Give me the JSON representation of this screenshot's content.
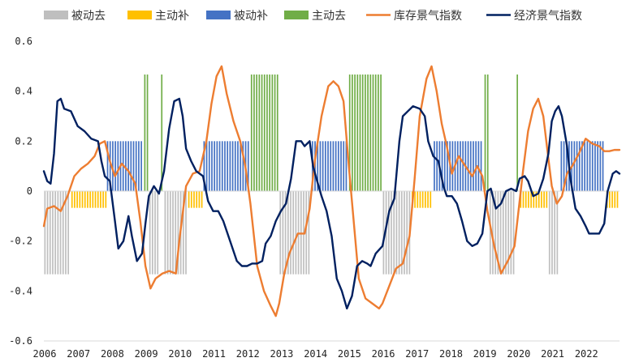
{
  "chart_data": {
    "type": "line",
    "title": "",
    "xlabel": "",
    "ylabel": "",
    "ylim": [
      -0.6,
      0.6
    ],
    "yticks": [
      "0.6",
      "0.4",
      "0.2",
      "0",
      "-0.2",
      "-0.4",
      "-0.6"
    ],
    "ytick_values": [
      0.6,
      0.4,
      0.2,
      0,
      -0.2,
      -0.4,
      -0.6
    ],
    "xlim": [
      2006.0,
      2023.0
    ],
    "xticks": [
      "2006",
      "2007",
      "2008",
      "2009",
      "2010",
      "2011",
      "2012",
      "2013",
      "2014",
      "2015",
      "2016",
      "2017",
      "2018",
      "2019",
      "2020",
      "2021",
      "2022"
    ],
    "legend": {
      "position": "top",
      "items": [
        {
          "label": "被动去",
          "kind": "bar",
          "color": "#bfbfbf"
        },
        {
          "label": "主动补",
          "kind": "bar",
          "color": "#ffc000"
        },
        {
          "label": "被动补",
          "kind": "bar",
          "color": "#4472c4"
        },
        {
          "label": "主动去",
          "kind": "bar",
          "color": "#70ad47"
        },
        {
          "label": "库存景气指数",
          "kind": "line",
          "color": "#ed7d31"
        },
        {
          "label": "经济景气指数",
          "kind": "line",
          "color": "#002060"
        }
      ]
    },
    "regimes": [
      {
        "start": 2006.0,
        "end": 2006.8,
        "phase": "被动去",
        "value": -0.333
      },
      {
        "start": 2006.8,
        "end": 2007.85,
        "phase": "主动补",
        "value": -0.067
      },
      {
        "start": 2007.85,
        "end": 2008.95,
        "phase": "被动补",
        "value": 0.2
      },
      {
        "start": 2008.95,
        "end": 2009.1,
        "phase": "主动去",
        "value": 0.467
      },
      {
        "start": 2009.1,
        "end": 2009.45,
        "phase": "被动去",
        "value": -0.333
      },
      {
        "start": 2009.45,
        "end": 2009.55,
        "phase": "主动去",
        "value": 0.467
      },
      {
        "start": 2009.55,
        "end": 2010.25,
        "phase": "被动去",
        "value": -0.333
      },
      {
        "start": 2010.25,
        "end": 2010.7,
        "phase": "主动补",
        "value": -0.067
      },
      {
        "start": 2010.7,
        "end": 2012.1,
        "phase": "被动补",
        "value": 0.2
      },
      {
        "start": 2012.1,
        "end": 2012.95,
        "phase": "主动去",
        "value": 0.467
      },
      {
        "start": 2012.95,
        "end": 2013.9,
        "phase": "被动去",
        "value": -0.333
      },
      {
        "start": 2013.9,
        "end": 2015.0,
        "phase": "被动补",
        "value": 0.2
      },
      {
        "start": 2015.0,
        "end": 2016.0,
        "phase": "主动去",
        "value": 0.467
      },
      {
        "start": 2016.0,
        "end": 2016.85,
        "phase": "被动去",
        "value": -0.333
      },
      {
        "start": 2016.85,
        "end": 2017.5,
        "phase": "主动补",
        "value": -0.067
      },
      {
        "start": 2017.5,
        "end": 2019.0,
        "phase": "被动补",
        "value": 0.2
      },
      {
        "start": 2019.0,
        "end": 2019.15,
        "phase": "主动去",
        "value": 0.467
      },
      {
        "start": 2019.15,
        "end": 2019.95,
        "phase": "被动去",
        "value": -0.333
      },
      {
        "start": 2019.95,
        "end": 2020.05,
        "phase": "主动去",
        "value": 0.467
      },
      {
        "start": 2020.05,
        "end": 2020.9,
        "phase": "主动补",
        "value": -0.067
      },
      {
        "start": 2020.9,
        "end": 2021.25,
        "phase": "被动去",
        "value": -0.333
      },
      {
        "start": 2021.25,
        "end": 2022.6,
        "phase": "被动补",
        "value": 0.2
      },
      {
        "start": 2022.6,
        "end": 2023.0,
        "phase": "主动补",
        "value": -0.067
      }
    ],
    "series": [
      {
        "name": "库存景气指数",
        "color": "#ed7d31",
        "points": [
          [
            2006.0,
            -0.14
          ],
          [
            2006.1,
            -0.07
          ],
          [
            2006.3,
            -0.06
          ],
          [
            2006.5,
            -0.08
          ],
          [
            2006.7,
            -0.02
          ],
          [
            2006.9,
            0.06
          ],
          [
            2007.1,
            0.09
          ],
          [
            2007.3,
            0.11
          ],
          [
            2007.5,
            0.14
          ],
          [
            2007.65,
            0.19
          ],
          [
            2007.8,
            0.2
          ],
          [
            2007.95,
            0.12
          ],
          [
            2008.1,
            0.06
          ],
          [
            2008.3,
            0.11
          ],
          [
            2008.5,
            0.08
          ],
          [
            2008.7,
            0.03
          ],
          [
            2008.85,
            -0.12
          ],
          [
            2009.0,
            -0.3
          ],
          [
            2009.15,
            -0.39
          ],
          [
            2009.3,
            -0.35
          ],
          [
            2009.5,
            -0.33
          ],
          [
            2009.7,
            -0.32
          ],
          [
            2009.9,
            -0.33
          ],
          [
            2010.0,
            -0.2
          ],
          [
            2010.2,
            0.02
          ],
          [
            2010.4,
            0.07
          ],
          [
            2010.6,
            0.08
          ],
          [
            2010.8,
            0.2
          ],
          [
            2010.95,
            0.35
          ],
          [
            2011.1,
            0.46
          ],
          [
            2011.25,
            0.5
          ],
          [
            2011.4,
            0.39
          ],
          [
            2011.6,
            0.28
          ],
          [
            2011.8,
            0.2
          ],
          [
            2011.95,
            0.1
          ],
          [
            2012.1,
            -0.05
          ],
          [
            2012.3,
            -0.3
          ],
          [
            2012.5,
            -0.4
          ],
          [
            2012.7,
            -0.46
          ],
          [
            2012.85,
            -0.5
          ],
          [
            2012.95,
            -0.45
          ],
          [
            2013.1,
            -0.33
          ],
          [
            2013.25,
            -0.25
          ],
          [
            2013.5,
            -0.17
          ],
          [
            2013.7,
            -0.17
          ],
          [
            2013.85,
            -0.07
          ],
          [
            2014.0,
            0.12
          ],
          [
            2014.2,
            0.3
          ],
          [
            2014.4,
            0.42
          ],
          [
            2014.55,
            0.44
          ],
          [
            2014.7,
            0.42
          ],
          [
            2014.85,
            0.36
          ],
          [
            2015.0,
            0.11
          ],
          [
            2015.15,
            -0.12
          ],
          [
            2015.3,
            -0.35
          ],
          [
            2015.5,
            -0.43
          ],
          [
            2015.7,
            -0.45
          ],
          [
            2015.9,
            -0.47
          ],
          [
            2016.0,
            -0.45
          ],
          [
            2016.2,
            -0.38
          ],
          [
            2016.4,
            -0.31
          ],
          [
            2016.6,
            -0.29
          ],
          [
            2016.8,
            -0.18
          ],
          [
            2016.95,
            0.05
          ],
          [
            2017.1,
            0.3
          ],
          [
            2017.3,
            0.45
          ],
          [
            2017.45,
            0.5
          ],
          [
            2017.6,
            0.4
          ],
          [
            2017.75,
            0.27
          ],
          [
            2017.9,
            0.18
          ],
          [
            2018.05,
            0.07
          ],
          [
            2018.25,
            0.14
          ],
          [
            2018.45,
            0.1
          ],
          [
            2018.65,
            0.06
          ],
          [
            2018.8,
            0.1
          ],
          [
            2018.95,
            0.06
          ],
          [
            2019.1,
            -0.08
          ],
          [
            2019.3,
            -0.22
          ],
          [
            2019.5,
            -0.33
          ],
          [
            2019.7,
            -0.28
          ],
          [
            2019.9,
            -0.22
          ],
          [
            2020.0,
            -0.1
          ],
          [
            2020.15,
            0.08
          ],
          [
            2020.3,
            0.24
          ],
          [
            2020.45,
            0.33
          ],
          [
            2020.6,
            0.37
          ],
          [
            2020.75,
            0.3
          ],
          [
            2020.9,
            0.13
          ],
          [
            2021.0,
            0.02
          ],
          [
            2021.15,
            -0.05
          ],
          [
            2021.3,
            -0.02
          ],
          [
            2021.45,
            0.07
          ],
          [
            2021.6,
            0.1
          ],
          [
            2021.8,
            0.15
          ],
          [
            2022.0,
            0.21
          ],
          [
            2022.2,
            0.19
          ],
          [
            2022.4,
            0.18
          ],
          [
            2022.55,
            0.16
          ],
          [
            2022.7,
            0.16
          ],
          [
            2022.85,
            0.165
          ],
          [
            2023.0,
            0.165
          ]
        ]
      },
      {
        "name": "经济景气指数",
        "color": "#002060",
        "points": [
          [
            2006.0,
            0.08
          ],
          [
            2006.1,
            0.04
          ],
          [
            2006.2,
            0.03
          ],
          [
            2006.3,
            0.15
          ],
          [
            2006.4,
            0.36
          ],
          [
            2006.5,
            0.37
          ],
          [
            2006.6,
            0.33
          ],
          [
            2006.8,
            0.32
          ],
          [
            2007.0,
            0.26
          ],
          [
            2007.2,
            0.24
          ],
          [
            2007.4,
            0.21
          ],
          [
            2007.6,
            0.2
          ],
          [
            2007.7,
            0.12
          ],
          [
            2007.8,
            0.06
          ],
          [
            2007.95,
            0.04
          ],
          [
            2008.1,
            -0.12
          ],
          [
            2008.2,
            -0.23
          ],
          [
            2008.35,
            -0.2
          ],
          [
            2008.5,
            -0.1
          ],
          [
            2008.6,
            -0.18
          ],
          [
            2008.75,
            -0.28
          ],
          [
            2008.9,
            -0.25
          ],
          [
            2009.0,
            -0.13
          ],
          [
            2009.1,
            -0.02
          ],
          [
            2009.25,
            0.02
          ],
          [
            2009.4,
            -0.01
          ],
          [
            2009.55,
            0.08
          ],
          [
            2009.7,
            0.25
          ],
          [
            2009.85,
            0.36
          ],
          [
            2010.0,
            0.37
          ],
          [
            2010.1,
            0.3
          ],
          [
            2010.2,
            0.17
          ],
          [
            2010.35,
            0.12
          ],
          [
            2010.5,
            0.08
          ],
          [
            2010.7,
            0.06
          ],
          [
            2010.85,
            -0.04
          ],
          [
            2011.0,
            -0.08
          ],
          [
            2011.15,
            -0.08
          ],
          [
            2011.3,
            -0.12
          ],
          [
            2011.5,
            -0.2
          ],
          [
            2011.7,
            -0.28
          ],
          [
            2011.85,
            -0.3
          ],
          [
            2012.0,
            -0.3
          ],
          [
            2012.15,
            -0.29
          ],
          [
            2012.3,
            -0.29
          ],
          [
            2012.45,
            -0.28
          ],
          [
            2012.55,
            -0.21
          ],
          [
            2012.7,
            -0.18
          ],
          [
            2012.85,
            -0.12
          ],
          [
            2013.0,
            -0.08
          ],
          [
            2013.15,
            -0.05
          ],
          [
            2013.3,
            0.05
          ],
          [
            2013.45,
            0.2
          ],
          [
            2013.6,
            0.2
          ],
          [
            2013.7,
            0.18
          ],
          [
            2013.85,
            0.2
          ],
          [
            2013.95,
            0.1
          ],
          [
            2014.05,
            0.05
          ],
          [
            2014.2,
            -0.02
          ],
          [
            2014.35,
            -0.08
          ],
          [
            2014.5,
            -0.18
          ],
          [
            2014.65,
            -0.35
          ],
          [
            2014.8,
            -0.4
          ],
          [
            2014.95,
            -0.47
          ],
          [
            2015.1,
            -0.42
          ],
          [
            2015.25,
            -0.3
          ],
          [
            2015.4,
            -0.28
          ],
          [
            2015.55,
            -0.29
          ],
          [
            2015.65,
            -0.3
          ],
          [
            2015.8,
            -0.25
          ],
          [
            2016.0,
            -0.22
          ],
          [
            2016.1,
            -0.15
          ],
          [
            2016.2,
            -0.08
          ],
          [
            2016.35,
            -0.03
          ],
          [
            2016.5,
            0.2
          ],
          [
            2016.6,
            0.3
          ],
          [
            2016.75,
            0.32
          ],
          [
            2016.9,
            0.34
          ],
          [
            2017.1,
            0.33
          ],
          [
            2017.25,
            0.3
          ],
          [
            2017.35,
            0.2
          ],
          [
            2017.5,
            0.14
          ],
          [
            2017.65,
            0.12
          ],
          [
            2017.8,
            0.02
          ],
          [
            2017.9,
            -0.02
          ],
          [
            2018.05,
            -0.02
          ],
          [
            2018.2,
            -0.05
          ],
          [
            2018.35,
            -0.12
          ],
          [
            2018.5,
            -0.2
          ],
          [
            2018.65,
            -0.22
          ],
          [
            2018.8,
            -0.21
          ],
          [
            2018.95,
            -0.17
          ],
          [
            2019.1,
            0.0
          ],
          [
            2019.2,
            0.01
          ],
          [
            2019.35,
            -0.07
          ],
          [
            2019.5,
            -0.05
          ],
          [
            2019.65,
            0.0
          ],
          [
            2019.8,
            0.01
          ],
          [
            2019.95,
            0.0
          ],
          [
            2020.05,
            0.05
          ],
          [
            2020.2,
            0.06
          ],
          [
            2020.3,
            0.04
          ],
          [
            2020.45,
            -0.02
          ],
          [
            2020.6,
            -0.01
          ],
          [
            2020.75,
            0.05
          ],
          [
            2020.9,
            0.15
          ],
          [
            2021.0,
            0.28
          ],
          [
            2021.1,
            0.32
          ],
          [
            2021.2,
            0.34
          ],
          [
            2021.3,
            0.3
          ],
          [
            2021.45,
            0.18
          ],
          [
            2021.55,
            0.05
          ],
          [
            2021.7,
            -0.07
          ],
          [
            2021.85,
            -0.1
          ],
          [
            2022.0,
            -0.14
          ],
          [
            2022.1,
            -0.17
          ],
          [
            2022.25,
            -0.17
          ],
          [
            2022.4,
            -0.17
          ],
          [
            2022.55,
            -0.13
          ],
          [
            2022.65,
            0.0
          ],
          [
            2022.8,
            0.07
          ],
          [
            2022.9,
            0.08
          ],
          [
            2023.0,
            0.07
          ]
        ]
      }
    ]
  }
}
